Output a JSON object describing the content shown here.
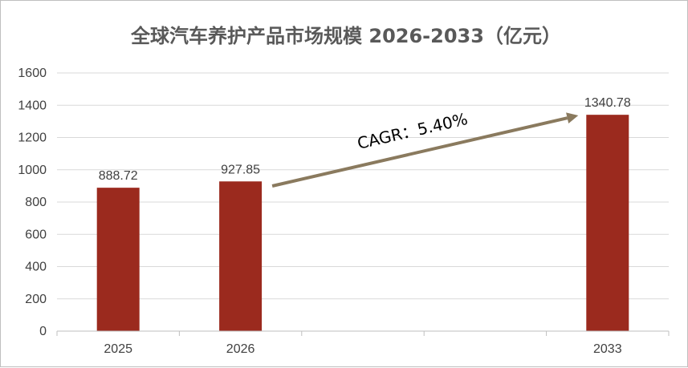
{
  "chart_data": {
    "type": "bar",
    "title": "全球汽车养护产品市场规模 2026-2033（亿元）",
    "categories": [
      "2025",
      "2026",
      "",
      "",
      "2033"
    ],
    "values": [
      888.72,
      927.85,
      null,
      null,
      1340.78
    ],
    "data_labels": [
      "888.72",
      "927.85",
      "",
      "",
      "1340.78"
    ],
    "yticks": [
      "0",
      "200",
      "400",
      "600",
      "800",
      "1000",
      "1200",
      "1400",
      "1600"
    ],
    "ylim": [
      0,
      1600
    ],
    "grid": true,
    "legend": "none",
    "bar_color": "#9b2a1e",
    "annotation": {
      "text": "CAGR：5.40%",
      "from_category": "2026",
      "to_category": "2033",
      "arrow_color": "#8a7a5e"
    }
  }
}
